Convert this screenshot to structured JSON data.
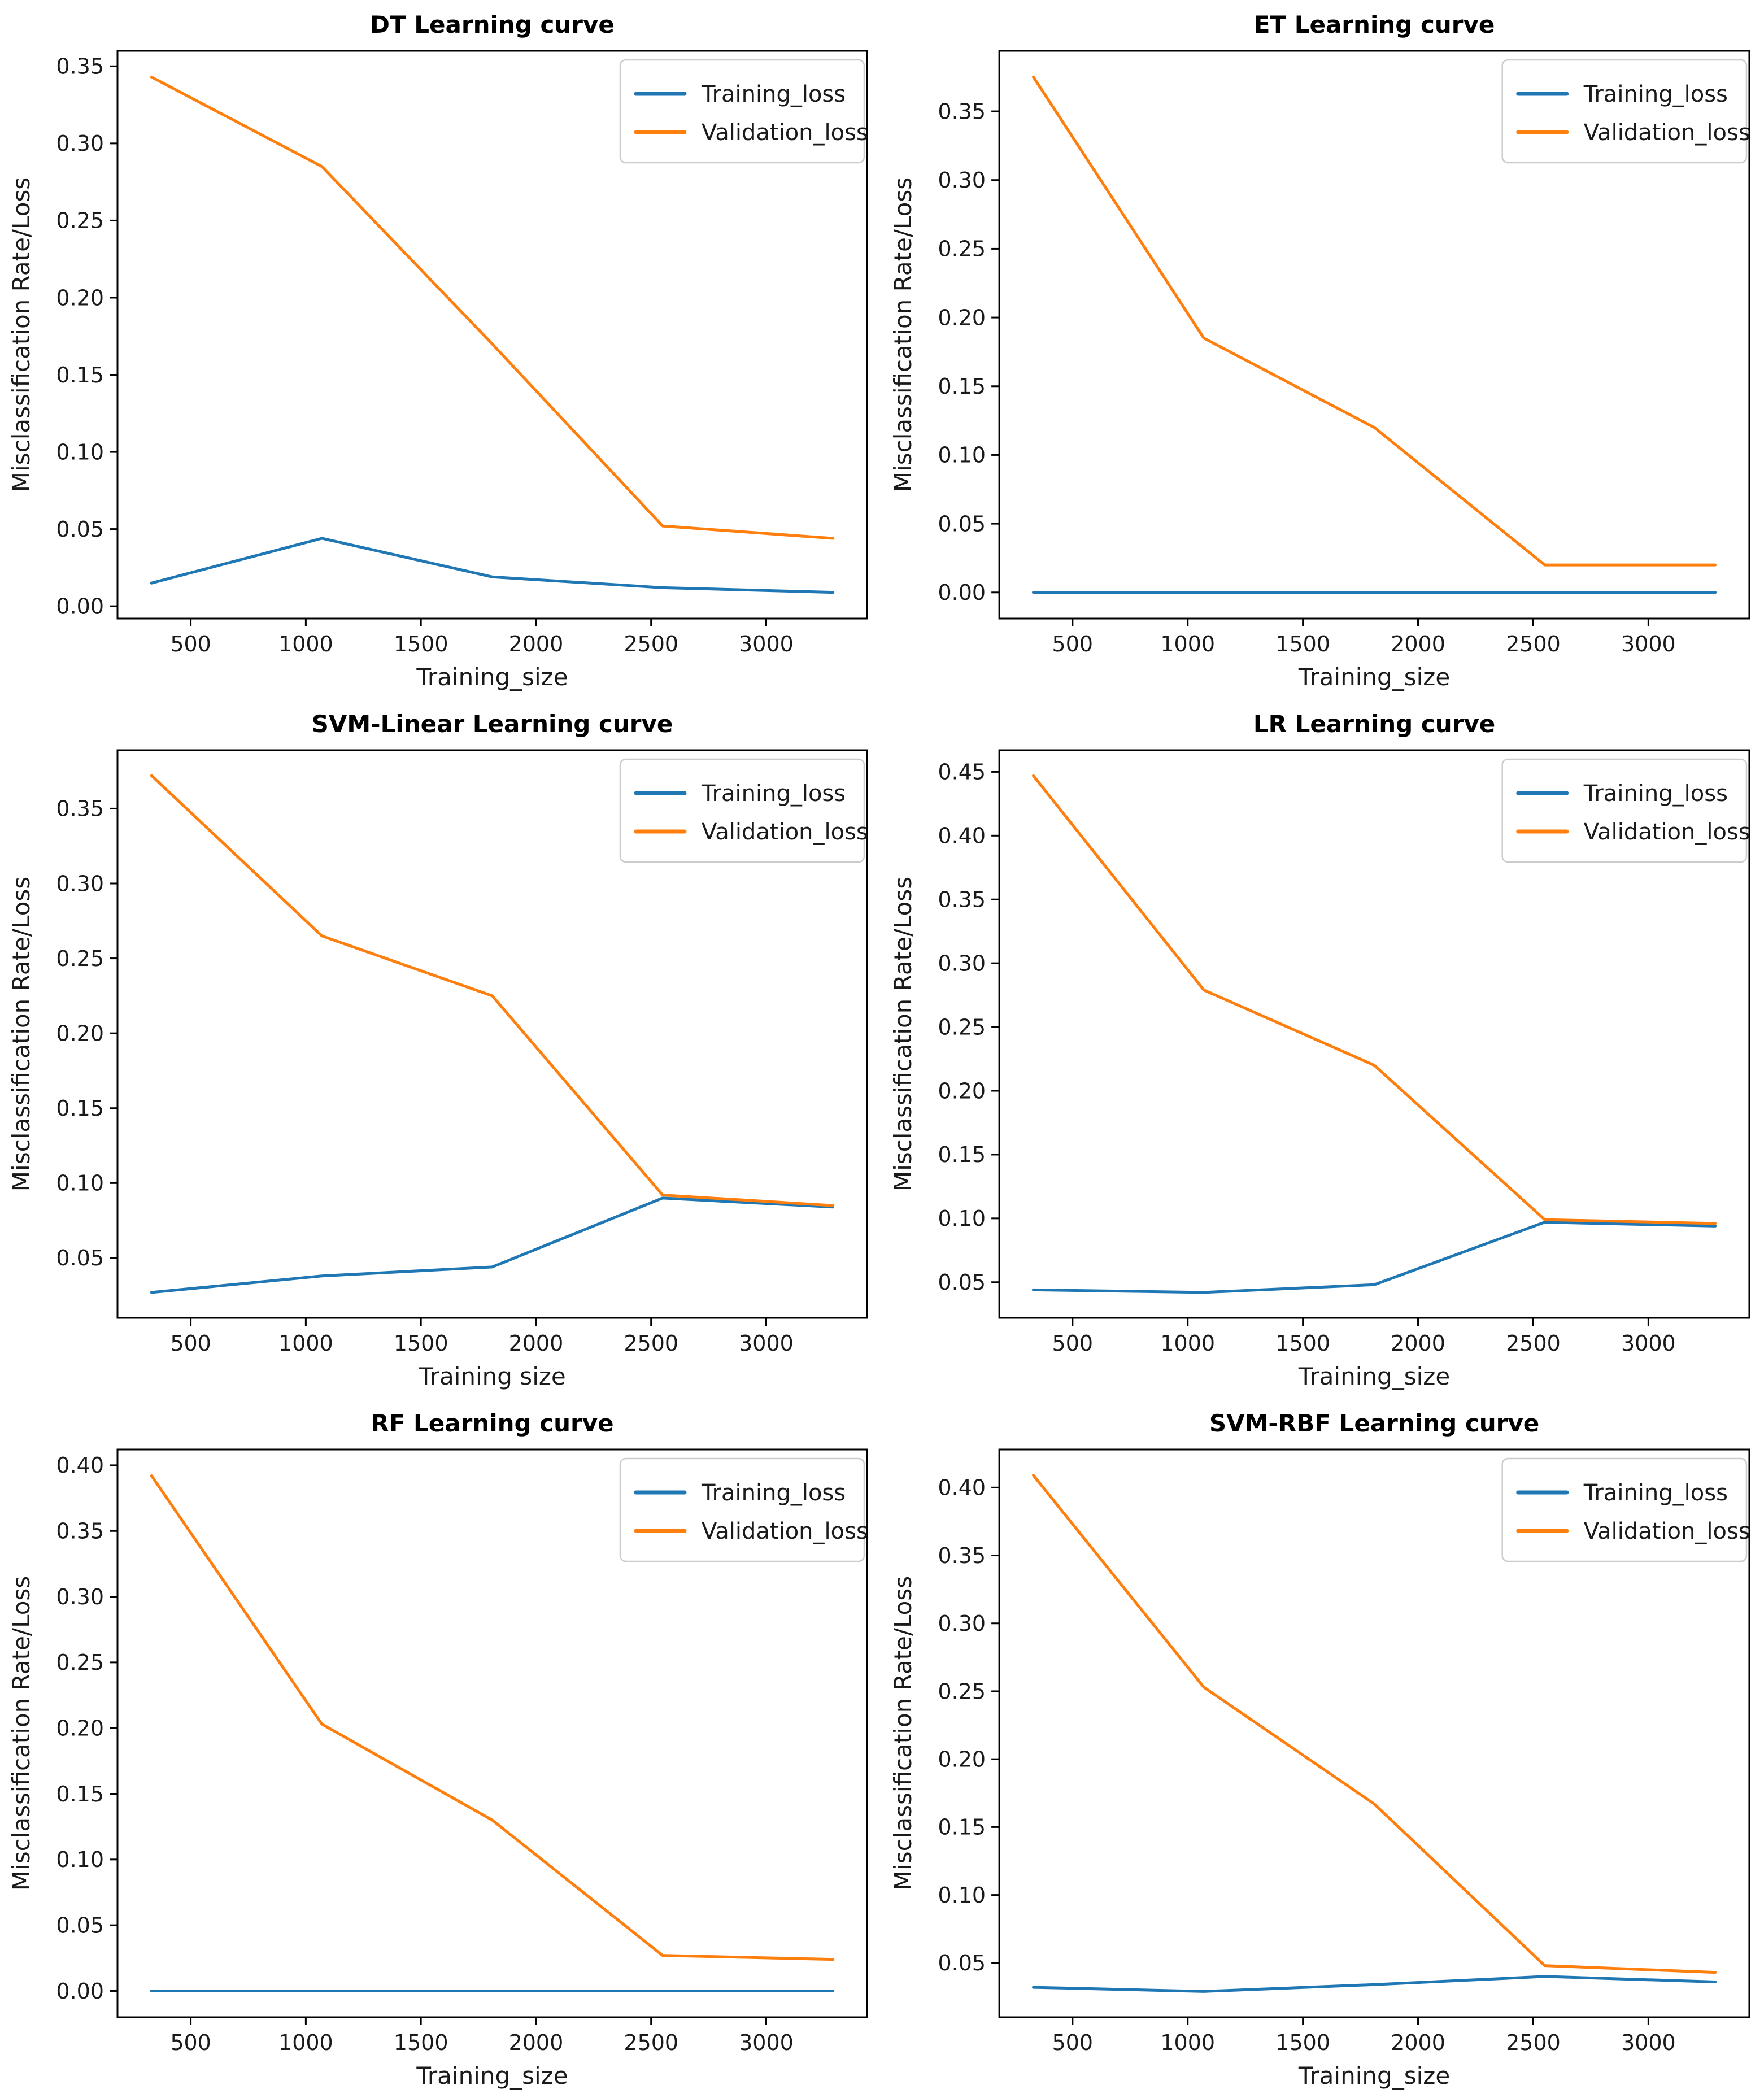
{
  "colors": {
    "training_line": "#1f77b4",
    "validation_line": "#ff7f0e",
    "axis": "#000000",
    "text": "#1a1a1a",
    "legend_border": "#cccccc",
    "background": "#ffffff"
  },
  "legend": {
    "entries": [
      "Training_loss",
      "Validation_loss"
    ],
    "position": "upper right"
  },
  "chart_data": [
    {
      "id": "dt",
      "type": "line",
      "title": "DT Learning curve",
      "xlabel": "Training_size",
      "ylabel": "Misclassification Rate/Loss",
      "x": [
        330,
        1070,
        1810,
        2550,
        3290
      ],
      "series": [
        {
          "name": "Training_loss",
          "color": "#1f77b4",
          "values": [
            0.015,
            0.044,
            0.019,
            0.012,
            0.009
          ]
        },
        {
          "name": "Validation_loss",
          "color": "#ff7f0e",
          "values": [
            0.343,
            0.285,
            0.17,
            0.052,
            0.044
          ]
        }
      ],
      "x_ticks": [
        500,
        1000,
        1500,
        2000,
        2500,
        3000
      ],
      "y_tick_labels": [
        "0.00",
        "0.05",
        "0.10",
        "0.15",
        "0.20",
        "0.25",
        "0.30",
        "0.35"
      ],
      "xlim": [
        182,
        3438
      ],
      "ylim": [
        -0.008,
        0.36
      ],
      "grid": false,
      "legend_position": "upper right"
    },
    {
      "id": "et",
      "type": "line",
      "title": "ET Learning curve",
      "xlabel": "Training_size",
      "ylabel": "Misclassification Rate/Loss",
      "x": [
        330,
        1070,
        1810,
        2550,
        3290
      ],
      "series": [
        {
          "name": "Training_loss",
          "color": "#1f77b4",
          "values": [
            0.0,
            0.0,
            0.0,
            0.0,
            0.0
          ]
        },
        {
          "name": "Validation_loss",
          "color": "#ff7f0e",
          "values": [
            0.375,
            0.185,
            0.12,
            0.02,
            0.02
          ]
        }
      ],
      "x_ticks": [
        500,
        1000,
        1500,
        2000,
        2500,
        3000
      ],
      "y_tick_labels": [
        "0.00",
        "0.05",
        "0.10",
        "0.15",
        "0.20",
        "0.25",
        "0.30",
        "0.35"
      ],
      "xlim": [
        182,
        3438
      ],
      "ylim": [
        -0.019,
        0.394
      ],
      "grid": false,
      "legend_position": "upper right"
    },
    {
      "id": "svm-linear",
      "type": "line",
      "title": "SVM-Linear Learning curve",
      "xlabel": "Training size",
      "ylabel": "Misclassification Rate/Loss",
      "x": [
        330,
        1070,
        1810,
        2550,
        3290
      ],
      "series": [
        {
          "name": "Training_loss",
          "color": "#1f77b4",
          "values": [
            0.027,
            0.038,
            0.044,
            0.09,
            0.084
          ]
        },
        {
          "name": "Validation_loss",
          "color": "#ff7f0e",
          "values": [
            0.372,
            0.265,
            0.225,
            0.092,
            0.085
          ]
        }
      ],
      "x_ticks": [
        500,
        1000,
        1500,
        2000,
        2500,
        3000
      ],
      "y_tick_labels": [
        "0.05",
        "0.10",
        "0.15",
        "0.20",
        "0.25",
        "0.30",
        "0.35"
      ],
      "xlim": [
        182,
        3438
      ],
      "ylim": [
        0.01,
        0.389
      ],
      "grid": false,
      "legend_position": "upper right"
    },
    {
      "id": "lr",
      "type": "line",
      "title": "LR Learning curve",
      "xlabel": "Training_size",
      "ylabel": "Misclassification Rate/Loss",
      "x": [
        330,
        1070,
        1810,
        2550,
        3290
      ],
      "series": [
        {
          "name": "Training_loss",
          "color": "#1f77b4",
          "values": [
            0.044,
            0.042,
            0.048,
            0.097,
            0.094
          ]
        },
        {
          "name": "Validation_loss",
          "color": "#ff7f0e",
          "values": [
            0.447,
            0.279,
            0.22,
            0.099,
            0.096
          ]
        }
      ],
      "x_ticks": [
        500,
        1000,
        1500,
        2000,
        2500,
        3000
      ],
      "y_tick_labels": [
        "0.05",
        "0.10",
        "0.15",
        "0.20",
        "0.25",
        "0.30",
        "0.35",
        "0.40",
        "0.45"
      ],
      "xlim": [
        182,
        3438
      ],
      "ylim": [
        0.022,
        0.467
      ],
      "grid": false,
      "legend_position": "upper right"
    },
    {
      "id": "rf",
      "type": "line",
      "title": "RF Learning curve",
      "xlabel": "Training_size",
      "ylabel": "Misclassification Rate/Loss",
      "x": [
        330,
        1070,
        1810,
        2550,
        3290
      ],
      "series": [
        {
          "name": "Training_loss",
          "color": "#1f77b4",
          "values": [
            0.0,
            0.0,
            0.0,
            0.0,
            0.0
          ]
        },
        {
          "name": "Validation_loss",
          "color": "#ff7f0e",
          "values": [
            0.392,
            0.203,
            0.13,
            0.027,
            0.024
          ]
        }
      ],
      "x_ticks": [
        500,
        1000,
        1500,
        2000,
        2500,
        3000
      ],
      "y_tick_labels": [
        "0.00",
        "0.05",
        "0.10",
        "0.15",
        "0.20",
        "0.25",
        "0.30",
        "0.35",
        "0.40"
      ],
      "xlim": [
        182,
        3438
      ],
      "ylim": [
        -0.02,
        0.412
      ],
      "grid": false,
      "legend_position": "upper right"
    },
    {
      "id": "svm-rbf",
      "type": "line",
      "title": "SVM-RBF Learning curve",
      "xlabel": "Training_size",
      "ylabel": "Misclassification Rate/Loss",
      "x": [
        330,
        1070,
        1810,
        2550,
        3290
      ],
      "series": [
        {
          "name": "Training_loss",
          "color": "#1f77b4",
          "values": [
            0.032,
            0.029,
            0.034,
            0.04,
            0.036
          ]
        },
        {
          "name": "Validation_loss",
          "color": "#ff7f0e",
          "values": [
            0.409,
            0.253,
            0.167,
            0.048,
            0.043
          ]
        }
      ],
      "x_ticks": [
        500,
        1000,
        1500,
        2000,
        2500,
        3000
      ],
      "y_tick_labels": [
        "0.05",
        "0.10",
        "0.15",
        "0.20",
        "0.25",
        "0.30",
        "0.35",
        "0.40"
      ],
      "xlim": [
        182,
        3438
      ],
      "ylim": [
        0.01,
        0.428
      ],
      "grid": false,
      "legend_position": "upper right"
    }
  ]
}
